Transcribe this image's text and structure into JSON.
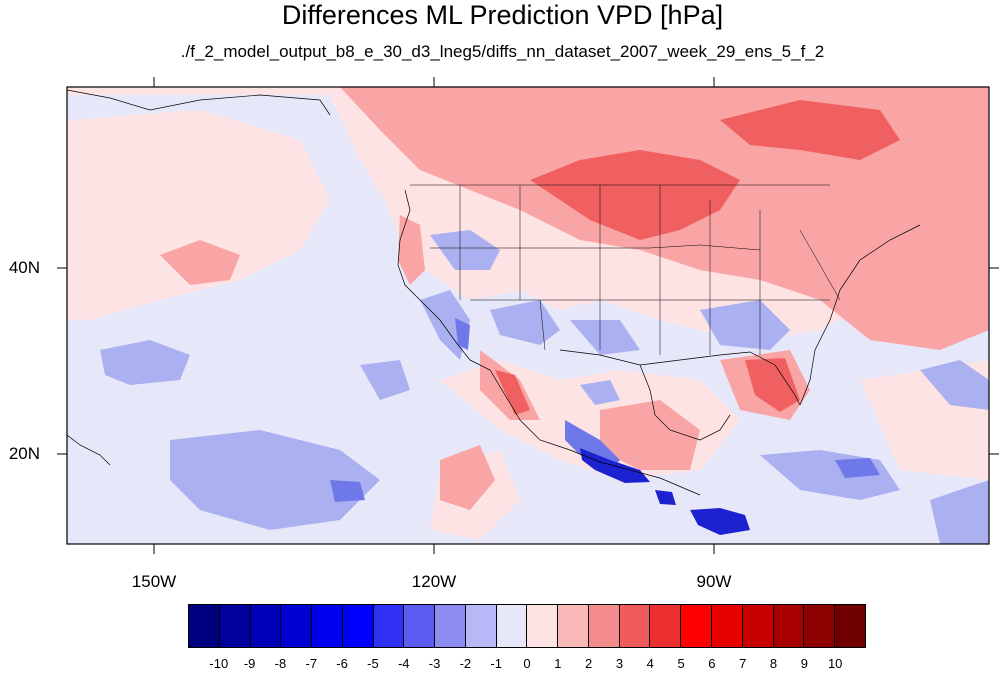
{
  "title": "Differences ML Prediction VPD [hPa]",
  "subtitle": "./f_2_model_output_b8_e_30_d3_lneg5/diffs_nn_dataset_2007_week_29_ens_5_f_2",
  "axes": {
    "lon_labels": [
      "150W",
      "120W",
      "90W"
    ],
    "lat_labels": [
      "40N",
      "20N"
    ]
  },
  "map_data": {
    "type": "filled_contour",
    "projection": "cylindrical_equidistant",
    "lon_range": [
      -159.4,
      -60.6
    ],
    "lat_range": [
      10.5,
      59.5
    ],
    "units": "hPa",
    "background_class": "weak_negative",
    "region_colors": {
      "strong_positive": "#f06060",
      "positive": "#f9a5a5",
      "weak_positive": "#fde3e3",
      "weak_negative": "#e6e8fa",
      "negative": "#aab0f0",
      "strong_negative": "#6f78e8",
      "very_strong_negative": "#1c22d0"
    }
  },
  "colorbar": {
    "labels": [
      "-10",
      "-9",
      "-8",
      "-7",
      "-6",
      "-5",
      "-4",
      "-3",
      "-2",
      "-1",
      "0",
      "1",
      "2",
      "3",
      "4",
      "5",
      "6",
      "7",
      "8",
      "9",
      "10"
    ],
    "colors": [
      "#000080",
      "#00009c",
      "#0000b8",
      "#0000d4",
      "#0000ee",
      "#0000ff",
      "#3030f5",
      "#5c5cf0",
      "#8c8cf2",
      "#b8b8f8",
      "#e6e8fa",
      "#fde3e3",
      "#f9b8b8",
      "#f58c8c",
      "#f05c5c",
      "#ec3030",
      "#ff0000",
      "#e60000",
      "#c80000",
      "#a80000",
      "#8c0000",
      "#700000"
    ]
  }
}
